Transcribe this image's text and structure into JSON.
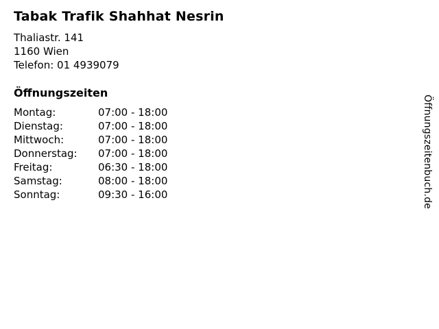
{
  "business": {
    "name": "Tabak Trafik Shahhat Nesrin",
    "address_line1": "Thaliastr. 141",
    "address_line2": "1160 Wien",
    "phone_line": "Telefon: 01 4939079"
  },
  "hours": {
    "heading": "Öffnungszeiten",
    "rows": [
      {
        "day": "Montag:",
        "time": "07:00 - 18:00"
      },
      {
        "day": "Dienstag:",
        "time": "07:00 - 18:00"
      },
      {
        "day": "Mittwoch:",
        "time": "07:00 - 18:00"
      },
      {
        "day": "Donnerstag:",
        "time": "07:00 - 18:00"
      },
      {
        "day": "Freitag:",
        "time": "06:30 - 18:00"
      },
      {
        "day": "Samstag:",
        "time": "08:00 - 18:00"
      },
      {
        "day": "Sonntag:",
        "time": "09:30 - 16:00"
      }
    ]
  },
  "watermark": "Öffnungszeitenbuch.de",
  "colors": {
    "text": "#000000",
    "background": "#ffffff"
  }
}
